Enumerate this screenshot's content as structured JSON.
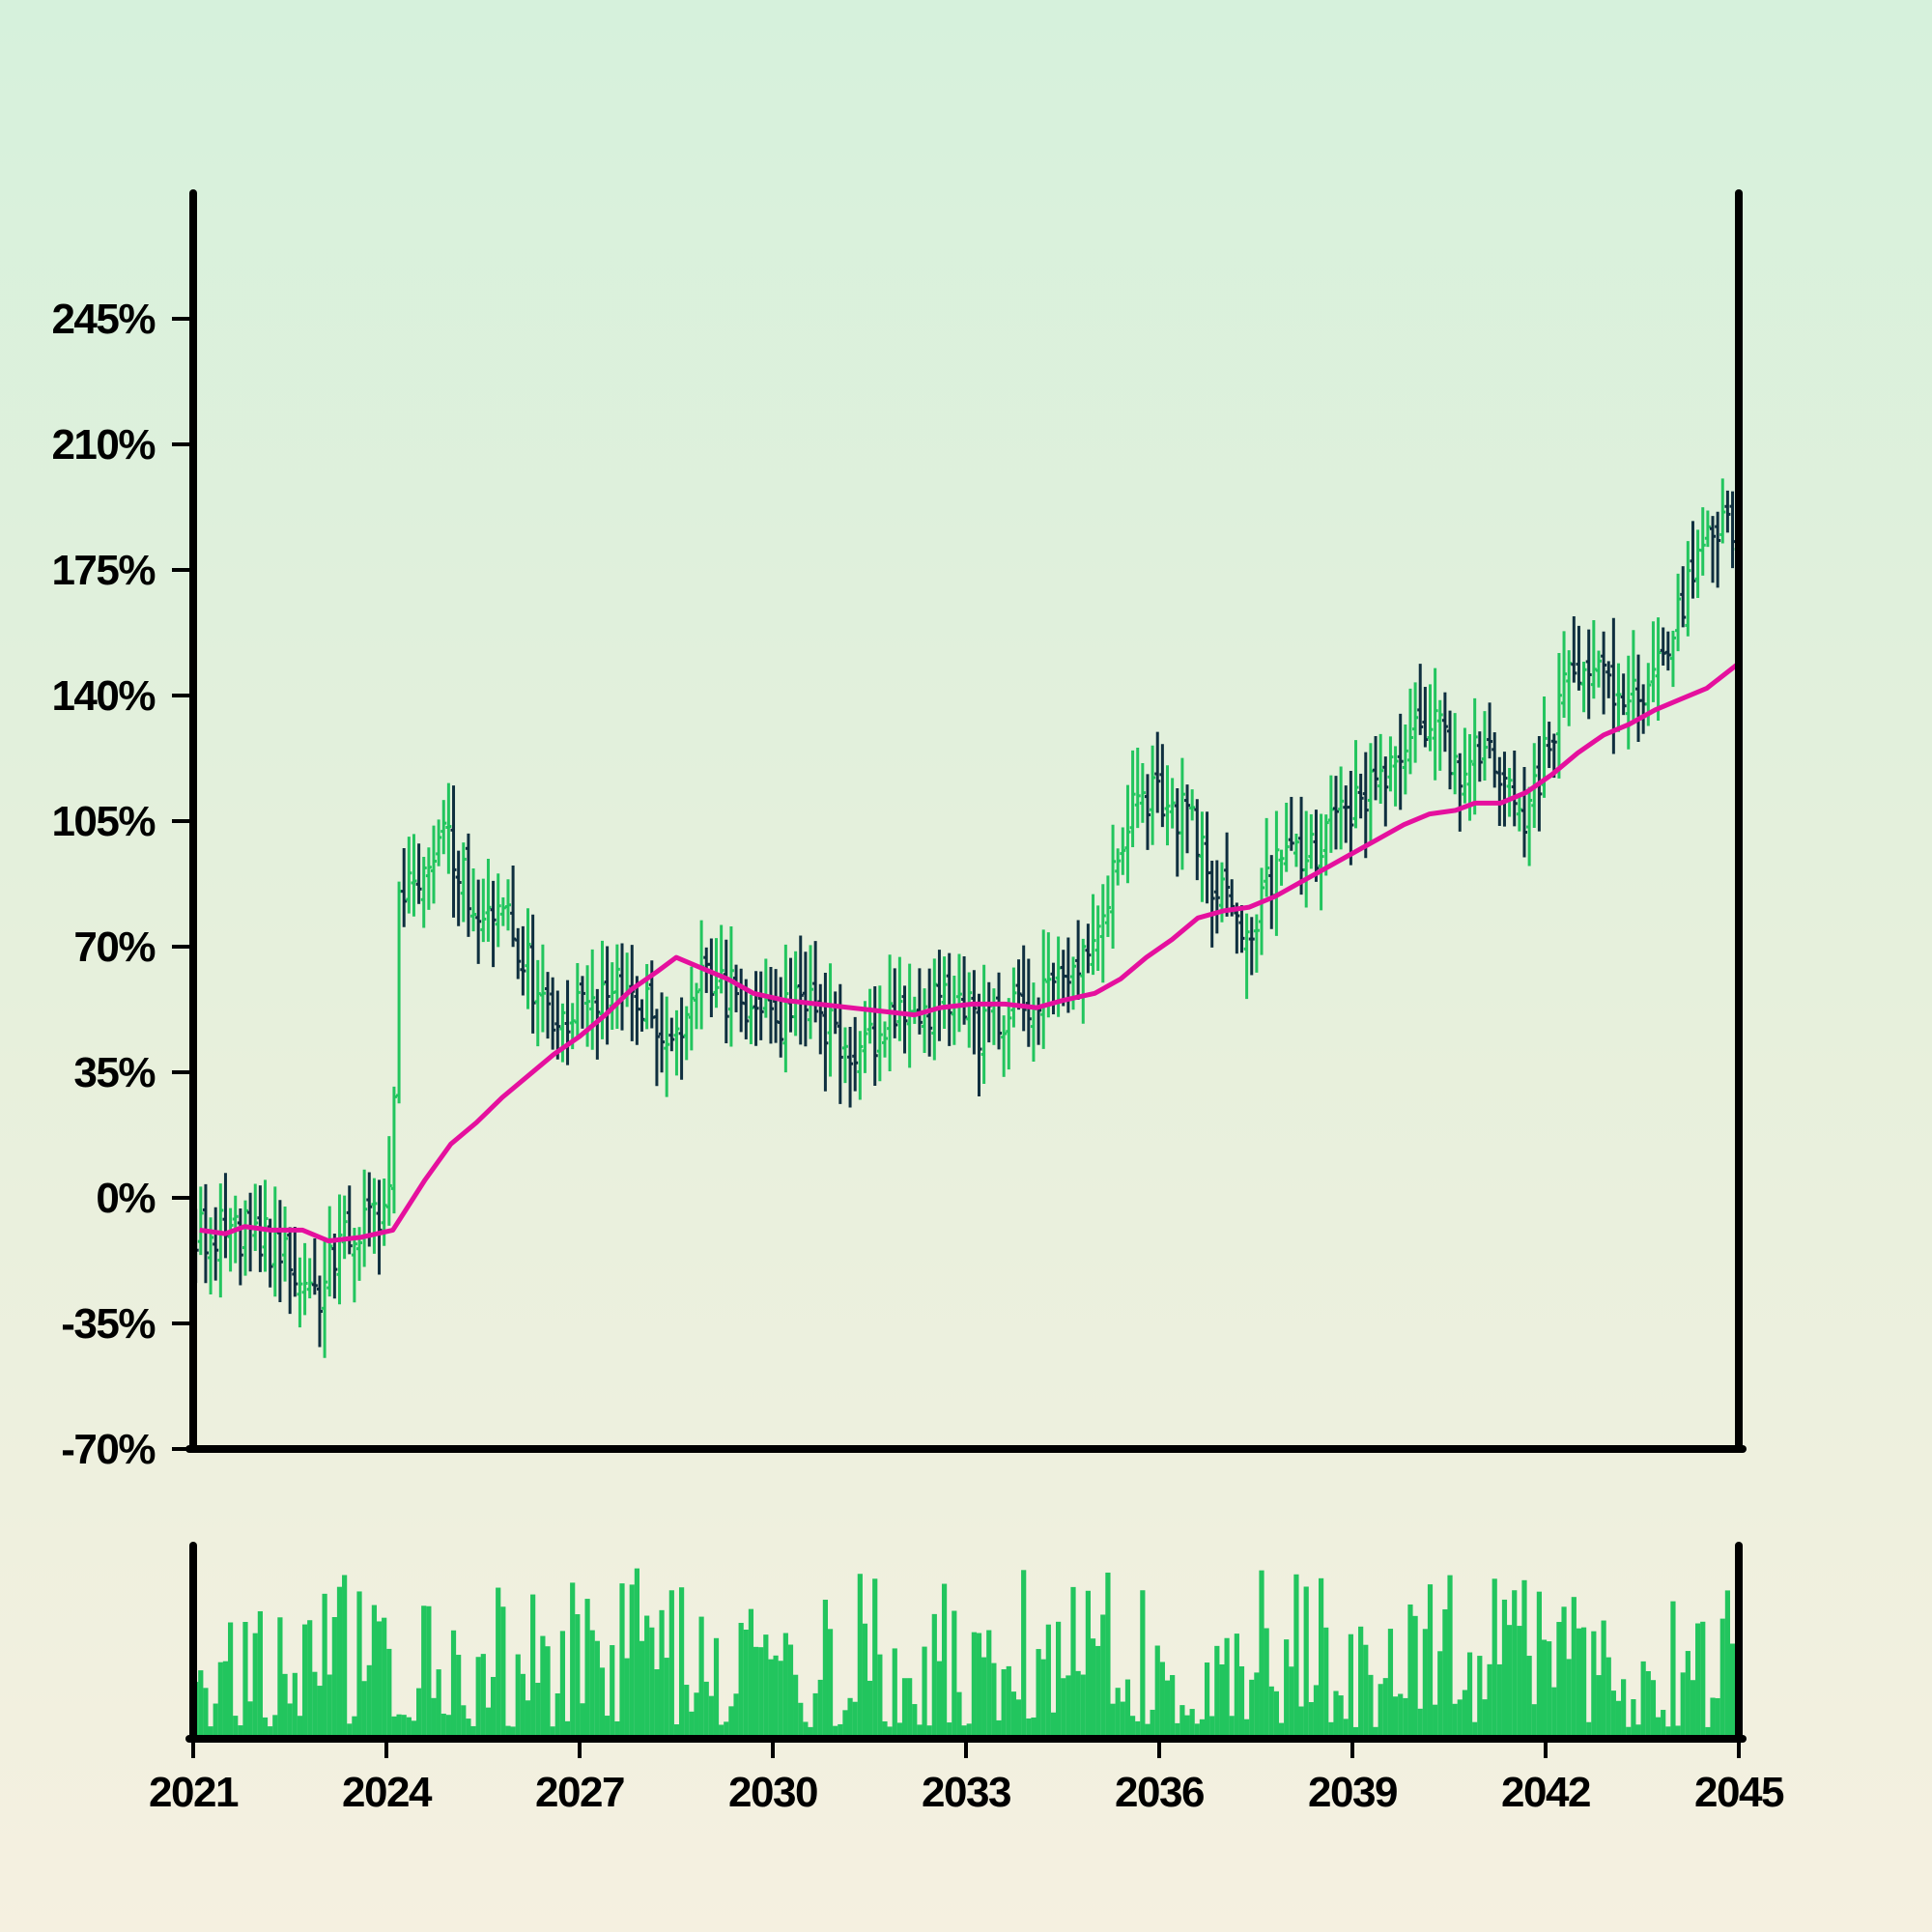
{
  "colors": {
    "up": "#22c55e",
    "down": "#0f2f3f",
    "moving_average": "#e5109e",
    "volume": "#22c55e",
    "axis": "#000000"
  },
  "chart_data": {
    "type": "ohlc",
    "title": "",
    "xlabel": "",
    "ylabel": "",
    "x_range": [
      2021.0,
      2045.0
    ],
    "y_range": [
      -70,
      280
    ],
    "x_ticks": [
      {
        "value": 2021,
        "label": "2021"
      },
      {
        "value": 2024,
        "label": "2024"
      },
      {
        "value": 2027,
        "label": "2027"
      },
      {
        "value": 2030,
        "label": "2030"
      },
      {
        "value": 2033,
        "label": "2033"
      },
      {
        "value": 2036,
        "label": "2036"
      },
      {
        "value": 2039,
        "label": "2039"
      },
      {
        "value": 2042,
        "label": "2042"
      },
      {
        "value": 2045,
        "label": "2045"
      }
    ],
    "y_ticks": [
      {
        "value": 245,
        "label": "245%"
      },
      {
        "value": 210,
        "label": "210%"
      },
      {
        "value": 175,
        "label": "175%"
      },
      {
        "value": 140,
        "label": "140%"
      },
      {
        "value": 105,
        "label": "105%"
      },
      {
        "value": 70,
        "label": "70%"
      },
      {
        "value": 35,
        "label": "35%"
      },
      {
        "value": 0,
        "label": "0%"
      },
      {
        "value": -35,
        "label": "-35%"
      },
      {
        "value": -70,
        "label": "-70%"
      }
    ],
    "grid": false,
    "price_anchors": [
      [
        2021.0,
        -10
      ],
      [
        2021.5,
        -8
      ],
      [
        2022.0,
        -12
      ],
      [
        2022.5,
        -15
      ],
      [
        2022.9,
        -28
      ],
      [
        2023.3,
        -12
      ],
      [
        2023.9,
        -5
      ],
      [
        2024.1,
        -2
      ],
      [
        2024.15,
        85
      ],
      [
        2024.6,
        90
      ],
      [
        2024.9,
        100
      ],
      [
        2025.4,
        82
      ],
      [
        2025.9,
        78
      ],
      [
        2026.3,
        60
      ],
      [
        2026.8,
        48
      ],
      [
        2027.5,
        58
      ],
      [
        2028.0,
        55
      ],
      [
        2028.4,
        48
      ],
      [
        2029.0,
        60
      ],
      [
        2029.5,
        55
      ],
      [
        2030.0,
        48
      ],
      [
        2030.5,
        55
      ],
      [
        2031.0,
        45
      ],
      [
        2031.4,
        40
      ],
      [
        2031.8,
        47
      ],
      [
        2032.3,
        52
      ],
      [
        2032.8,
        58
      ],
      [
        2033.2,
        48
      ],
      [
        2033.7,
        50
      ],
      [
        2034.2,
        55
      ],
      [
        2034.7,
        65
      ],
      [
        2035.2,
        82
      ],
      [
        2035.6,
        110
      ],
      [
        2036.0,
        113
      ],
      [
        2036.5,
        105
      ],
      [
        2036.9,
        85
      ],
      [
        2037.3,
        75
      ],
      [
        2037.8,
        90
      ],
      [
        2038.3,
        95
      ],
      [
        2038.7,
        105
      ],
      [
        2039.2,
        110
      ],
      [
        2039.7,
        128
      ],
      [
        2040.3,
        130
      ],
      [
        2040.8,
        118
      ],
      [
        2041.1,
        130
      ],
      [
        2041.6,
        105
      ],
      [
        2042.0,
        122
      ],
      [
        2042.4,
        150
      ],
      [
        2042.8,
        148
      ],
      [
        2043.3,
        140
      ],
      [
        2043.8,
        150
      ],
      [
        2044.2,
        170
      ],
      [
        2044.6,
        185
      ],
      [
        2045.0,
        188
      ]
    ],
    "moving_average": [
      [
        2021.1,
        -9
      ],
      [
        2021.5,
        -10
      ],
      [
        2021.8,
        -8
      ],
      [
        2022.2,
        -9
      ],
      [
        2022.7,
        -9
      ],
      [
        2023.1,
        -12
      ],
      [
        2023.6,
        -11
      ],
      [
        2024.1,
        -9
      ],
      [
        2024.6,
        5
      ],
      [
        2025.0,
        15
      ],
      [
        2025.4,
        21
      ],
      [
        2025.8,
        28
      ],
      [
        2026.2,
        34
      ],
      [
        2026.6,
        40
      ],
      [
        2027.0,
        45
      ],
      [
        2027.4,
        51
      ],
      [
        2027.8,
        58
      ],
      [
        2028.2,
        63
      ],
      [
        2028.5,
        67
      ],
      [
        2028.9,
        64
      ],
      [
        2029.3,
        61
      ],
      [
        2029.7,
        57
      ],
      [
        2030.2,
        55
      ],
      [
        2030.7,
        54
      ],
      [
        2031.2,
        53
      ],
      [
        2031.7,
        52
      ],
      [
        2032.2,
        51
      ],
      [
        2032.6,
        53
      ],
      [
        2033.1,
        54
      ],
      [
        2033.6,
        54
      ],
      [
        2034.1,
        53
      ],
      [
        2034.5,
        55
      ],
      [
        2035.0,
        57
      ],
      [
        2035.4,
        61
      ],
      [
        2035.8,
        67
      ],
      [
        2036.2,
        72
      ],
      [
        2036.6,
        78
      ],
      [
        2037.0,
        80
      ],
      [
        2037.4,
        81
      ],
      [
        2037.8,
        84
      ],
      [
        2038.2,
        88
      ],
      [
        2038.6,
        92
      ],
      [
        2039.0,
        96
      ],
      [
        2039.4,
        100
      ],
      [
        2039.8,
        104
      ],
      [
        2040.2,
        107
      ],
      [
        2040.6,
        108
      ],
      [
        2040.9,
        110
      ],
      [
        2041.3,
        110
      ],
      [
        2041.7,
        113
      ],
      [
        2042.1,
        118
      ],
      [
        2042.5,
        124
      ],
      [
        2042.9,
        129
      ],
      [
        2043.3,
        132
      ],
      [
        2043.7,
        136
      ],
      [
        2044.1,
        139
      ],
      [
        2044.5,
        142
      ],
      [
        2045.0,
        149
      ]
    ],
    "volume_note": "relative volume bars under the price panel"
  }
}
